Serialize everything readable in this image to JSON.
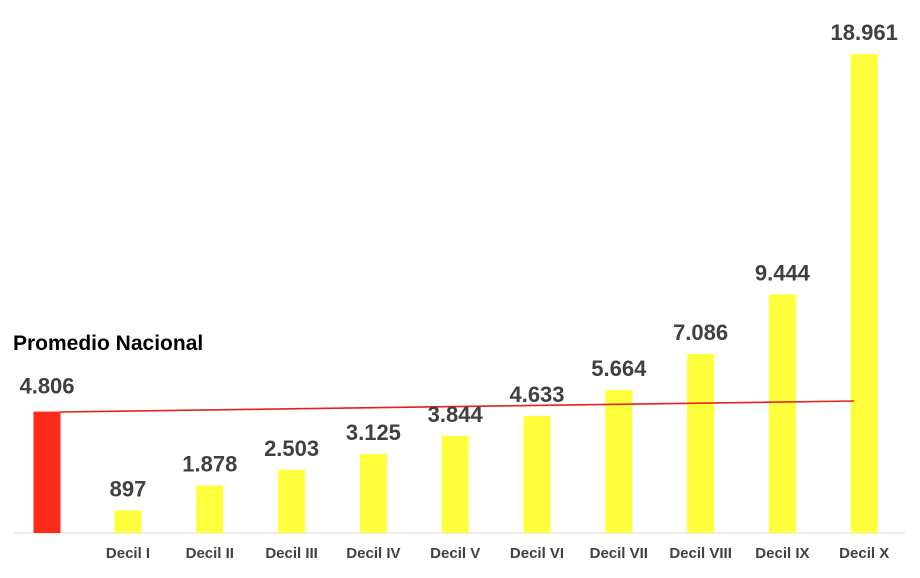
{
  "chart_data": {
    "type": "bar",
    "title": "",
    "xlabel": "",
    "ylabel": "",
    "ylim": [
      0,
      20000
    ],
    "grid": false,
    "legend": "none",
    "average": {
      "label": "Promedio Nacional",
      "value": 4806,
      "value_label": "4.806",
      "color": "#ff2a1a"
    },
    "categories": [
      "Decil I",
      "Decil II",
      "Decil III",
      "Decil IV",
      "Decil V",
      "Decil VI",
      "Decil VII",
      "Decil VIII",
      "Decil IX",
      "Decil X"
    ],
    "values": [
      897,
      1878,
      2503,
      3125,
      3844,
      4633,
      5664,
      7086,
      9444,
      18961
    ],
    "value_labels": [
      "897",
      "1.878",
      "2.503",
      "3.125",
      "3.844",
      "4.633",
      "5.664",
      "7.086",
      "9.444",
      "18.961"
    ],
    "bar_color": "#ffff3b",
    "trend_line_color": "#e8201b",
    "axis_color": "#d9d9d9"
  }
}
